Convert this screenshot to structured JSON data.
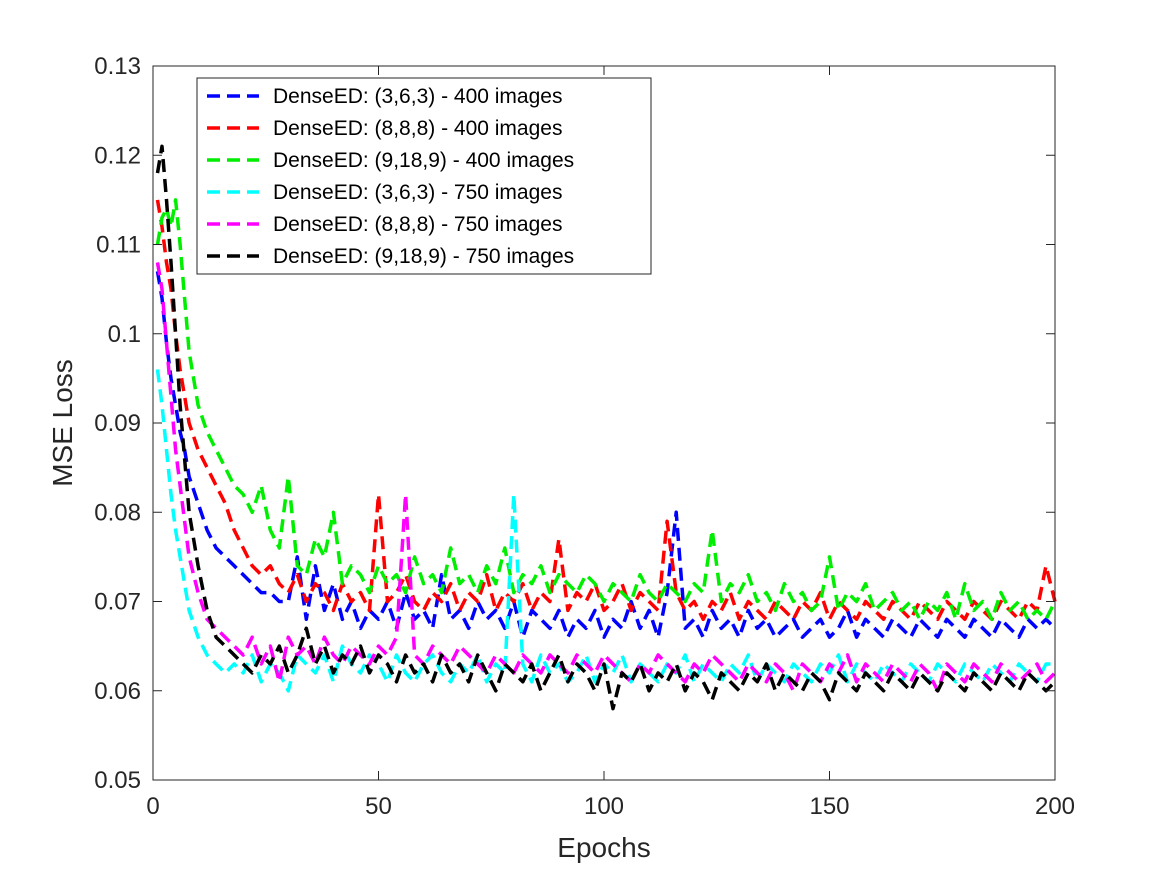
{
  "chart_data": {
    "type": "line",
    "xlabel": "Epochs",
    "ylabel": "MSE Loss",
    "xlim": [
      0,
      200
    ],
    "ylim": [
      0.05,
      0.13
    ],
    "xticks": [
      0,
      50,
      100,
      150,
      200
    ],
    "xtick_labels": [
      "0",
      "50",
      "100",
      "150",
      "200"
    ],
    "yticks": [
      0.05,
      0.06,
      0.07,
      0.08,
      0.09,
      0.1,
      0.11,
      0.12,
      0.13
    ],
    "ytick_labels": [
      "0.05",
      "0.06",
      "0.07",
      "0.08",
      "0.09",
      "0.1",
      "0.11",
      "0.12",
      "0.13"
    ],
    "grid": false,
    "legend_position": "top-left",
    "line_style": "dashed",
    "x": [
      1,
      2,
      3,
      4,
      5,
      6,
      7,
      8,
      10,
      12,
      14,
      16,
      18,
      20,
      22,
      24,
      26,
      28,
      30,
      32,
      34,
      36,
      38,
      40,
      42,
      44,
      46,
      48,
      50,
      52,
      54,
      56,
      58,
      60,
      62,
      64,
      66,
      68,
      70,
      72,
      74,
      76,
      78,
      80,
      82,
      84,
      86,
      88,
      90,
      92,
      94,
      96,
      98,
      100,
      102,
      104,
      106,
      108,
      110,
      112,
      114,
      116,
      118,
      120,
      122,
      124,
      126,
      128,
      130,
      132,
      134,
      136,
      138,
      140,
      142,
      144,
      146,
      148,
      150,
      152,
      154,
      156,
      158,
      160,
      162,
      164,
      166,
      168,
      170,
      172,
      174,
      176,
      178,
      180,
      182,
      184,
      186,
      188,
      190,
      192,
      194,
      196,
      198,
      200
    ],
    "series": [
      {
        "name": "DenseED: (3,6,3) - 400 images",
        "color": "#0000ff",
        "values": [
          0.107,
          0.104,
          0.099,
          0.095,
          0.092,
          0.089,
          0.087,
          0.084,
          0.081,
          0.078,
          0.076,
          0.075,
          0.074,
          0.073,
          0.072,
          0.071,
          0.071,
          0.07,
          0.07,
          0.075,
          0.068,
          0.074,
          0.069,
          0.072,
          0.068,
          0.07,
          0.067,
          0.069,
          0.068,
          0.07,
          0.067,
          0.071,
          0.068,
          0.069,
          0.067,
          0.073,
          0.068,
          0.069,
          0.067,
          0.07,
          0.068,
          0.069,
          0.067,
          0.07,
          0.066,
          0.069,
          0.068,
          0.067,
          0.069,
          0.066,
          0.068,
          0.067,
          0.069,
          0.066,
          0.068,
          0.067,
          0.07,
          0.067,
          0.069,
          0.066,
          0.071,
          0.08,
          0.067,
          0.068,
          0.066,
          0.069,
          0.067,
          0.068,
          0.066,
          0.069,
          0.067,
          0.068,
          0.066,
          0.067,
          0.068,
          0.066,
          0.067,
          0.068,
          0.066,
          0.067,
          0.069,
          0.066,
          0.068,
          0.067,
          0.066,
          0.068,
          0.067,
          0.066,
          0.068,
          0.067,
          0.066,
          0.068,
          0.067,
          0.066,
          0.068,
          0.067,
          0.066,
          0.068,
          0.067,
          0.066,
          0.068,
          0.067,
          0.068,
          0.067
        ]
      },
      {
        "name": "DenseED: (8,8,8) - 400 images",
        "color": "#ff0000",
        "values": [
          0.115,
          0.112,
          0.108,
          0.105,
          0.1,
          0.096,
          0.093,
          0.09,
          0.087,
          0.085,
          0.083,
          0.081,
          0.078,
          0.076,
          0.074,
          0.073,
          0.074,
          0.072,
          0.071,
          0.073,
          0.07,
          0.072,
          0.071,
          0.069,
          0.072,
          0.07,
          0.071,
          0.069,
          0.082,
          0.07,
          0.071,
          0.073,
          0.07,
          0.069,
          0.071,
          0.07,
          0.072,
          0.069,
          0.071,
          0.07,
          0.073,
          0.069,
          0.071,
          0.07,
          0.072,
          0.069,
          0.071,
          0.07,
          0.077,
          0.069,
          0.071,
          0.07,
          0.072,
          0.069,
          0.07,
          0.072,
          0.069,
          0.071,
          0.07,
          0.069,
          0.079,
          0.071,
          0.069,
          0.07,
          0.068,
          0.07,
          0.069,
          0.071,
          0.068,
          0.07,
          0.069,
          0.068,
          0.07,
          0.069,
          0.068,
          0.07,
          0.069,
          0.071,
          0.068,
          0.07,
          0.069,
          0.068,
          0.07,
          0.069,
          0.068,
          0.07,
          0.069,
          0.068,
          0.07,
          0.069,
          0.068,
          0.07,
          0.069,
          0.068,
          0.07,
          0.069,
          0.068,
          0.07,
          0.069,
          0.068,
          0.07,
          0.069,
          0.074,
          0.07
        ]
      },
      {
        "name": "DenseED: (9,18,9) - 400 images",
        "color": "#00ee00",
        "values": [
          0.11,
          0.113,
          0.114,
          0.112,
          0.115,
          0.11,
          0.104,
          0.098,
          0.092,
          0.089,
          0.087,
          0.085,
          0.083,
          0.082,
          0.08,
          0.083,
          0.078,
          0.076,
          0.084,
          0.074,
          0.073,
          0.077,
          0.075,
          0.08,
          0.072,
          0.074,
          0.073,
          0.071,
          0.074,
          0.072,
          0.073,
          0.071,
          0.075,
          0.072,
          0.073,
          0.071,
          0.076,
          0.072,
          0.073,
          0.071,
          0.074,
          0.072,
          0.076,
          0.071,
          0.073,
          0.072,
          0.074,
          0.071,
          0.073,
          0.072,
          0.071,
          0.073,
          0.072,
          0.07,
          0.072,
          0.071,
          0.07,
          0.073,
          0.071,
          0.07,
          0.072,
          0.071,
          0.07,
          0.072,
          0.071,
          0.078,
          0.07,
          0.072,
          0.071,
          0.073,
          0.07,
          0.071,
          0.069,
          0.072,
          0.07,
          0.071,
          0.069,
          0.07,
          0.075,
          0.069,
          0.071,
          0.07,
          0.072,
          0.069,
          0.07,
          0.071,
          0.069,
          0.07,
          0.068,
          0.07,
          0.069,
          0.071,
          0.068,
          0.072,
          0.069,
          0.07,
          0.068,
          0.071,
          0.069,
          0.07,
          0.068,
          0.069,
          0.068,
          0.07
        ]
      },
      {
        "name": "DenseED: (3,6,3) - 750 images",
        "color": "#00ffff",
        "values": [
          0.096,
          0.092,
          0.087,
          0.082,
          0.078,
          0.075,
          0.072,
          0.069,
          0.066,
          0.064,
          0.063,
          0.062,
          0.063,
          0.062,
          0.064,
          0.061,
          0.063,
          0.062,
          0.06,
          0.064,
          0.063,
          0.062,
          0.064,
          0.061,
          0.065,
          0.063,
          0.062,
          0.064,
          0.063,
          0.061,
          0.064,
          0.062,
          0.061,
          0.063,
          0.064,
          0.062,
          0.061,
          0.063,
          0.062,
          0.064,
          0.061,
          0.063,
          0.062,
          0.082,
          0.063,
          0.061,
          0.064,
          0.062,
          0.063,
          0.061,
          0.062,
          0.064,
          0.061,
          0.063,
          0.062,
          0.064,
          0.061,
          0.063,
          0.062,
          0.061,
          0.063,
          0.062,
          0.064,
          0.061,
          0.063,
          0.062,
          0.061,
          0.063,
          0.062,
          0.064,
          0.061,
          0.063,
          0.062,
          0.061,
          0.063,
          0.062,
          0.061,
          0.063,
          0.062,
          0.064,
          0.061,
          0.063,
          0.062,
          0.061,
          0.063,
          0.062,
          0.061,
          0.063,
          0.062,
          0.061,
          0.063,
          0.062,
          0.061,
          0.063,
          0.062,
          0.061,
          0.063,
          0.062,
          0.061,
          0.063,
          0.062,
          0.061,
          0.063,
          0.063
        ]
      },
      {
        "name": "DenseED: (8,8,8) - 750 images",
        "color": "#ff00ff",
        "values": [
          0.108,
          0.105,
          0.099,
          0.093,
          0.087,
          0.083,
          0.079,
          0.075,
          0.071,
          0.068,
          0.067,
          0.066,
          0.065,
          0.064,
          0.066,
          0.063,
          0.065,
          0.061,
          0.066,
          0.064,
          0.065,
          0.063,
          0.066,
          0.064,
          0.063,
          0.065,
          0.064,
          0.063,
          0.065,
          0.064,
          0.066,
          0.082,
          0.064,
          0.063,
          0.065,
          0.064,
          0.063,
          0.065,
          0.064,
          0.063,
          0.062,
          0.064,
          0.063,
          0.062,
          0.064,
          0.063,
          0.062,
          0.064,
          0.063,
          0.062,
          0.064,
          0.063,
          0.062,
          0.064,
          0.063,
          0.062,
          0.061,
          0.063,
          0.062,
          0.064,
          0.063,
          0.062,
          0.061,
          0.063,
          0.062,
          0.064,
          0.063,
          0.062,
          0.061,
          0.063,
          0.062,
          0.061,
          0.063,
          0.062,
          0.06,
          0.063,
          0.062,
          0.061,
          0.063,
          0.062,
          0.064,
          0.061,
          0.063,
          0.062,
          0.061,
          0.063,
          0.062,
          0.061,
          0.063,
          0.062,
          0.06,
          0.063,
          0.062,
          0.061,
          0.063,
          0.062,
          0.061,
          0.063,
          0.062,
          0.061,
          0.062,
          0.063,
          0.061,
          0.062
        ]
      },
      {
        "name": "DenseED: (9,18,9) - 750 images",
        "color": "#000000",
        "values": [
          0.118,
          0.121,
          0.115,
          0.108,
          0.1,
          0.092,
          0.086,
          0.08,
          0.074,
          0.069,
          0.066,
          0.065,
          0.064,
          0.063,
          0.062,
          0.064,
          0.063,
          0.065,
          0.062,
          0.064,
          0.067,
          0.063,
          0.065,
          0.062,
          0.064,
          0.063,
          0.065,
          0.062,
          0.064,
          0.063,
          0.061,
          0.064,
          0.062,
          0.063,
          0.061,
          0.064,
          0.062,
          0.063,
          0.061,
          0.064,
          0.062,
          0.06,
          0.063,
          0.062,
          0.061,
          0.063,
          0.06,
          0.062,
          0.064,
          0.061,
          0.063,
          0.062,
          0.06,
          0.063,
          0.058,
          0.062,
          0.061,
          0.063,
          0.06,
          0.062,
          0.061,
          0.063,
          0.06,
          0.062,
          0.061,
          0.059,
          0.062,
          0.061,
          0.06,
          0.062,
          0.061,
          0.063,
          0.06,
          0.062,
          0.061,
          0.06,
          0.062,
          0.061,
          0.059,
          0.062,
          0.061,
          0.06,
          0.062,
          0.061,
          0.06,
          0.062,
          0.061,
          0.06,
          0.062,
          0.061,
          0.06,
          0.062,
          0.061,
          0.06,
          0.062,
          0.061,
          0.06,
          0.062,
          0.061,
          0.06,
          0.062,
          0.061,
          0.06,
          0.061
        ]
      }
    ]
  }
}
